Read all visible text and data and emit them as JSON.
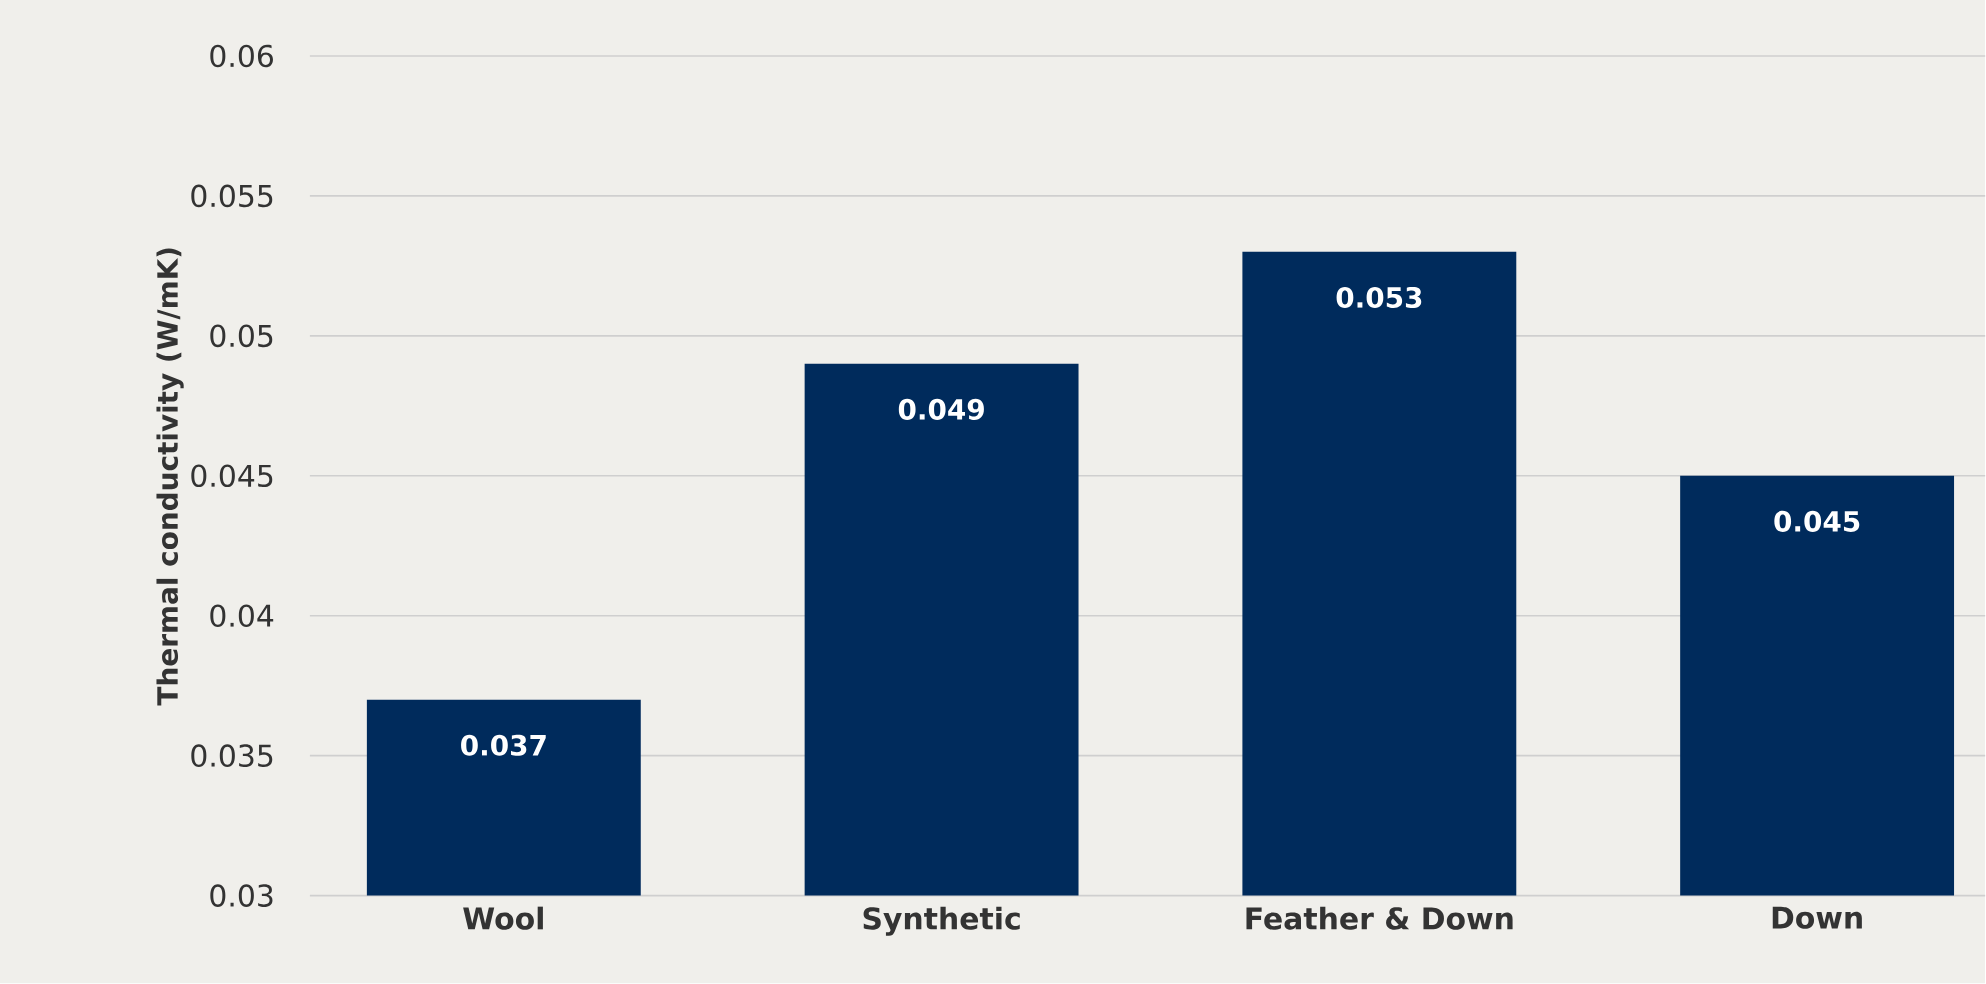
{
  "chart_data": {
    "type": "bar",
    "ylabel": "Thermal conductivity  (W/mK)",
    "categories": [
      "Wool",
      "Synthetic",
      "Feather & Down",
      "Down"
    ],
    "values": [
      0.037,
      0.049,
      0.053,
      0.045
    ],
    "color": "#002b5c",
    "ylim": [
      0.03,
      0.06
    ],
    "yticks": [
      0.03,
      0.035,
      0.04,
      0.045,
      0.05,
      0.055,
      0.06
    ],
    "grid": "y",
    "data_labels": true
  }
}
